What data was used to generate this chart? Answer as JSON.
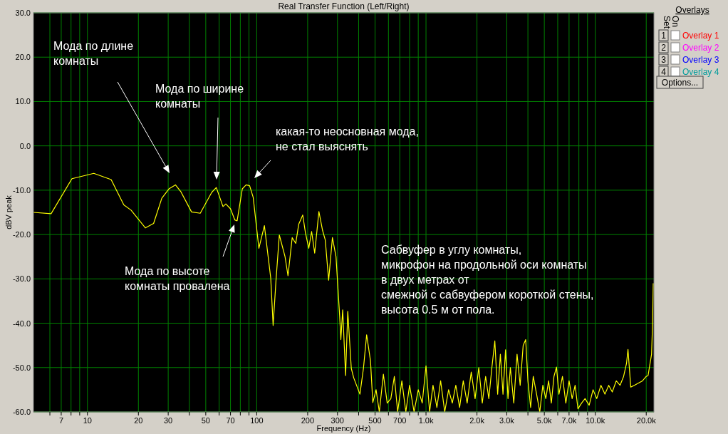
{
  "chart_data": {
    "type": "line",
    "title": "Real Transfer Function (Left/Right)",
    "xlabel": "Frequency (Hz)",
    "ylabel": "dBV peak",
    "log": "x",
    "grid": true,
    "marker": "none",
    "line_style": "solid",
    "xlim": [
      4.8,
      22200
    ],
    "ylim": [
      -60,
      30
    ],
    "xticks": [
      {
        "value": 6,
        "label": null
      },
      7,
      {
        "value": 8,
        "label": null
      },
      {
        "value": 9,
        "label": null
      },
      10,
      20,
      30,
      {
        "value": 40,
        "label": null
      },
      50,
      {
        "value": 60,
        "label": null
      },
      70,
      {
        "value": 80,
        "label": null
      },
      {
        "value": 90,
        "label": null
      },
      100,
      200,
      300,
      {
        "value": 400,
        "label": null
      },
      500,
      {
        "value": 600,
        "label": null
      },
      700,
      {
        "value": 800,
        "label": null
      },
      {
        "value": 900,
        "label": null
      },
      {
        "value": 1000,
        "label": "1.0k"
      },
      {
        "value": 2000,
        "label": "2.0k"
      },
      {
        "value": 3000,
        "label": "3.0k"
      },
      {
        "value": 4000,
        "label": null
      },
      {
        "value": 5000,
        "label": "5.0k"
      },
      {
        "value": 6000,
        "label": null
      },
      {
        "value": 7000,
        "label": "7.0k"
      },
      {
        "value": 8000,
        "label": null
      },
      {
        "value": 9000,
        "label": null
      },
      {
        "value": 10000,
        "label": "10.0k"
      },
      {
        "value": 20000,
        "label": "20.0k"
      }
    ],
    "yticks": [
      {
        "value": 30,
        "label": "30.0"
      },
      {
        "value": 20,
        "label": "20.0"
      },
      {
        "value": 10,
        "label": "10.0"
      },
      {
        "value": 0,
        "label": "0.0"
      },
      {
        "value": -10,
        "label": "-10.0"
      },
      {
        "value": -20,
        "label": "-20.0"
      },
      {
        "value": -30,
        "label": "-30.0"
      },
      {
        "value": -40,
        "label": "-40.0"
      },
      {
        "value": -50,
        "label": "-50.0"
      },
      {
        "value": -60,
        "label": "-60.0"
      }
    ],
    "series": [
      {
        "color": "#ffff00",
        "x": [
          4.8,
          6.1,
          8.1,
          10.9,
          13.8,
          16.4,
          18.1,
          22,
          24.6,
          27.5,
          30.3,
          33.1,
          35.6,
          41.2,
          46.4,
          54.2,
          57.7,
          63.2,
          65.7,
          70,
          74.2,
          76.6,
          82.2,
          86.6,
          90.8,
          95.3,
          103,
          111,
          121,
          125,
          130,
          136,
          147,
          153,
          162,
          170,
          177,
          187,
          194,
          203,
          211,
          220,
          233,
          245,
          254,
          266,
          280,
          294,
          309,
          314,
          322,
          335,
          345,
          362,
          374,
          407,
          427,
          446,
          470,
          485,
          507,
          530,
          560,
          590,
          620,
          650,
          680,
          720,
          760,
          800,
          850,
          900,
          950,
          1000,
          1050,
          1100,
          1160,
          1220,
          1290,
          1360,
          1430,
          1500,
          1580,
          1660,
          1750,
          1850,
          1950,
          2050,
          2150,
          2250,
          2350,
          2450,
          2550,
          2650,
          2750,
          2850,
          2950,
          3050,
          3150,
          3300,
          3450,
          3600,
          3750,
          3880,
          4000,
          4150,
          4300,
          4500,
          4700,
          4900,
          5100,
          5300,
          5500,
          5700,
          5900,
          6100,
          6400,
          6700,
          7000,
          7300,
          7600,
          7900,
          8300,
          8700,
          9200,
          9700,
          10200,
          10800,
          11400,
          12000,
          12600,
          13300,
          14000,
          14700,
          15300,
          15600,
          16200,
          17000,
          18000,
          19000,
          20000,
          20500,
          21500,
          21800,
          22000
        ],
        "values": [
          -15,
          -15.3,
          -7.4,
          -6.2,
          -7.6,
          -13.3,
          -14.5,
          -18.5,
          -17.5,
          -11.8,
          -9.7,
          -8.8,
          -10.3,
          -14.9,
          -15.2,
          -10.5,
          -9.4,
          -13.7,
          -13.1,
          -14.2,
          -16.7,
          -16.9,
          -9.7,
          -8.8,
          -9,
          -11.6,
          -23.1,
          -18,
          -29.8,
          -40.5,
          -30.3,
          -20.1,
          -25,
          -29.3,
          -20.7,
          -22,
          -17.7,
          -15.6,
          -19.6,
          -23.1,
          -19.3,
          -24.2,
          -14.8,
          -19.1,
          -21.2,
          -30.3,
          -20.7,
          -25,
          -38.4,
          -43.7,
          -37,
          -51.8,
          -37.3,
          -50.2,
          -52.3,
          -56,
          -50.2,
          -42.6,
          -48.5,
          -57.9,
          -55,
          -60,
          -51.5,
          -58,
          -57,
          -52,
          -60,
          -53,
          -60,
          -54,
          -60,
          -55,
          -58,
          -49.6,
          -60,
          -54,
          -59,
          -53,
          -60,
          -55,
          -58,
          -54,
          -59,
          -53,
          -58,
          -51,
          -57,
          -50,
          -58,
          -52,
          -57,
          -50,
          -44,
          -56,
          -47,
          -56,
          -46,
          -57,
          -50,
          -58,
          -47,
          -54,
          -45,
          -43.7,
          -53,
          -59,
          -52,
          -56,
          -60,
          -54,
          -57,
          -53,
          -58,
          -52,
          -49.9,
          -56,
          -52,
          -58,
          -53,
          -57,
          -54,
          -59.3,
          -58,
          -57,
          -58.5,
          -55,
          -57,
          -54,
          -56,
          -54,
          -55.5,
          -53,
          -54,
          -52,
          -49,
          -45.9,
          -54.4,
          -54,
          -53.5,
          -53,
          -52,
          -51.8,
          -47,
          -40,
          -31
        ]
      }
    ],
    "annotations": [
      "Мода по длине\nкомнаты",
      "Мода по ширине\nкомнаты",
      "какая-то неосновная мода,\nне стал выяснять",
      "Мода по высоте\nкомнаты провалена",
      "Сабвуфер в углу комнаты,\nмикрофон на продольной оси комнаты\nв двух метрах от\nсмежной с сабвуфером короткой стены,\nвысота 0.5 м от пола.",
      "Overlays",
      "Set",
      "On",
      "1",
      "Overlay 1",
      "2",
      "Overlay 2",
      "3",
      "Overlay 3",
      "4",
      "Overlay 4",
      "Options..."
    ]
  }
}
